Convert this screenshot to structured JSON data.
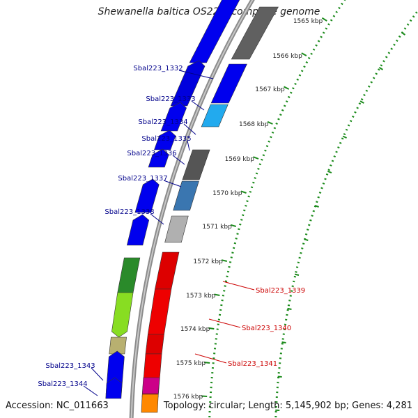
{
  "title": "Shewanella baltica OS223, complete genome",
  "footer": {
    "accession": "Accession: NC_011663",
    "summary": "Topology: circular; Length: 5,145,902 bp; Genes: 4,281"
  },
  "colors": {
    "backbone": "#8c8c8c",
    "tick": "#1a8a1a",
    "forward_label": "#00008b",
    "reverse_label": "#cc0000"
  },
  "kbp_labels": [
    "1565 kbp",
    "1566 kbp",
    "1567 kbp",
    "1568 kbp",
    "1569 kbp",
    "1570 kbp",
    "1571 kbp",
    "1572 kbp",
    "1573 kbp",
    "1574 kbp",
    "1575 kbp",
    "1576 kbp"
  ],
  "forward_genes": [
    "Sbal223_1332",
    "Sbal223_1333",
    "Sbal223_1334",
    "Sbal223_1335",
    "Sbal223_1336",
    "Sbal223_1337",
    "Sbal223_1338",
    "Sbal223_1343",
    "Sbal223_1344"
  ],
  "reverse_genes": [
    "Sbal223_1339",
    "Sbal223_1340",
    "Sbal223_1341"
  ]
}
